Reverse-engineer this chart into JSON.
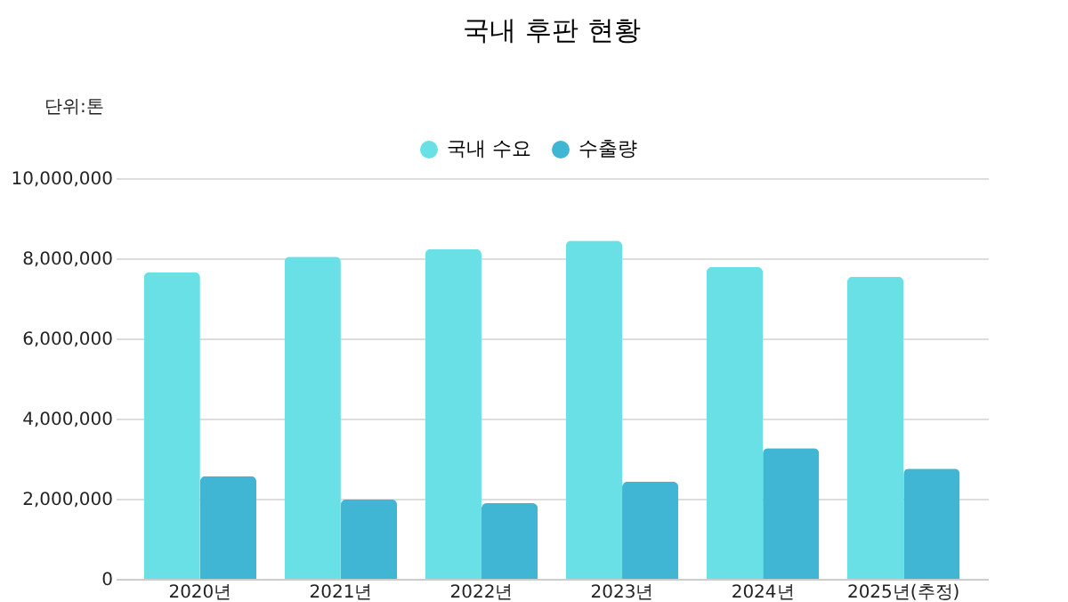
{
  "chart_data": {
    "type": "bar",
    "title": "국내 후판 현황",
    "categories": [
      "2020년",
      "2021년",
      "2022년",
      "2023년",
      "2024년",
      "2025년(추정)"
    ],
    "series": [
      {
        "name": "국내 수요",
        "color": "#68e0e6",
        "values": [
          7650000,
          8040000,
          8230000,
          8440000,
          7780000,
          7540000
        ]
      },
      {
        "name": "수출량",
        "color": "#41b6d4",
        "values": [
          2560000,
          1980000,
          1890000,
          2420000,
          3260000,
          2750000
        ]
      }
    ],
    "ylim": [
      0,
      10000000
    ],
    "yticks": [
      0,
      {
        "value": 2000000,
        "label": "2,000,000"
      },
      {
        "value": 4000000,
        "label": "4,000,000"
      },
      {
        "value": 6000000,
        "label": "6,000,000"
      },
      {
        "value": 8000000,
        "label": "8,000,000"
      },
      {
        "value": 10000000,
        "label": "10,000,000"
      }
    ],
    "grid": "y",
    "legend": "top",
    "annotations": [
      "단위:톤"
    ]
  }
}
